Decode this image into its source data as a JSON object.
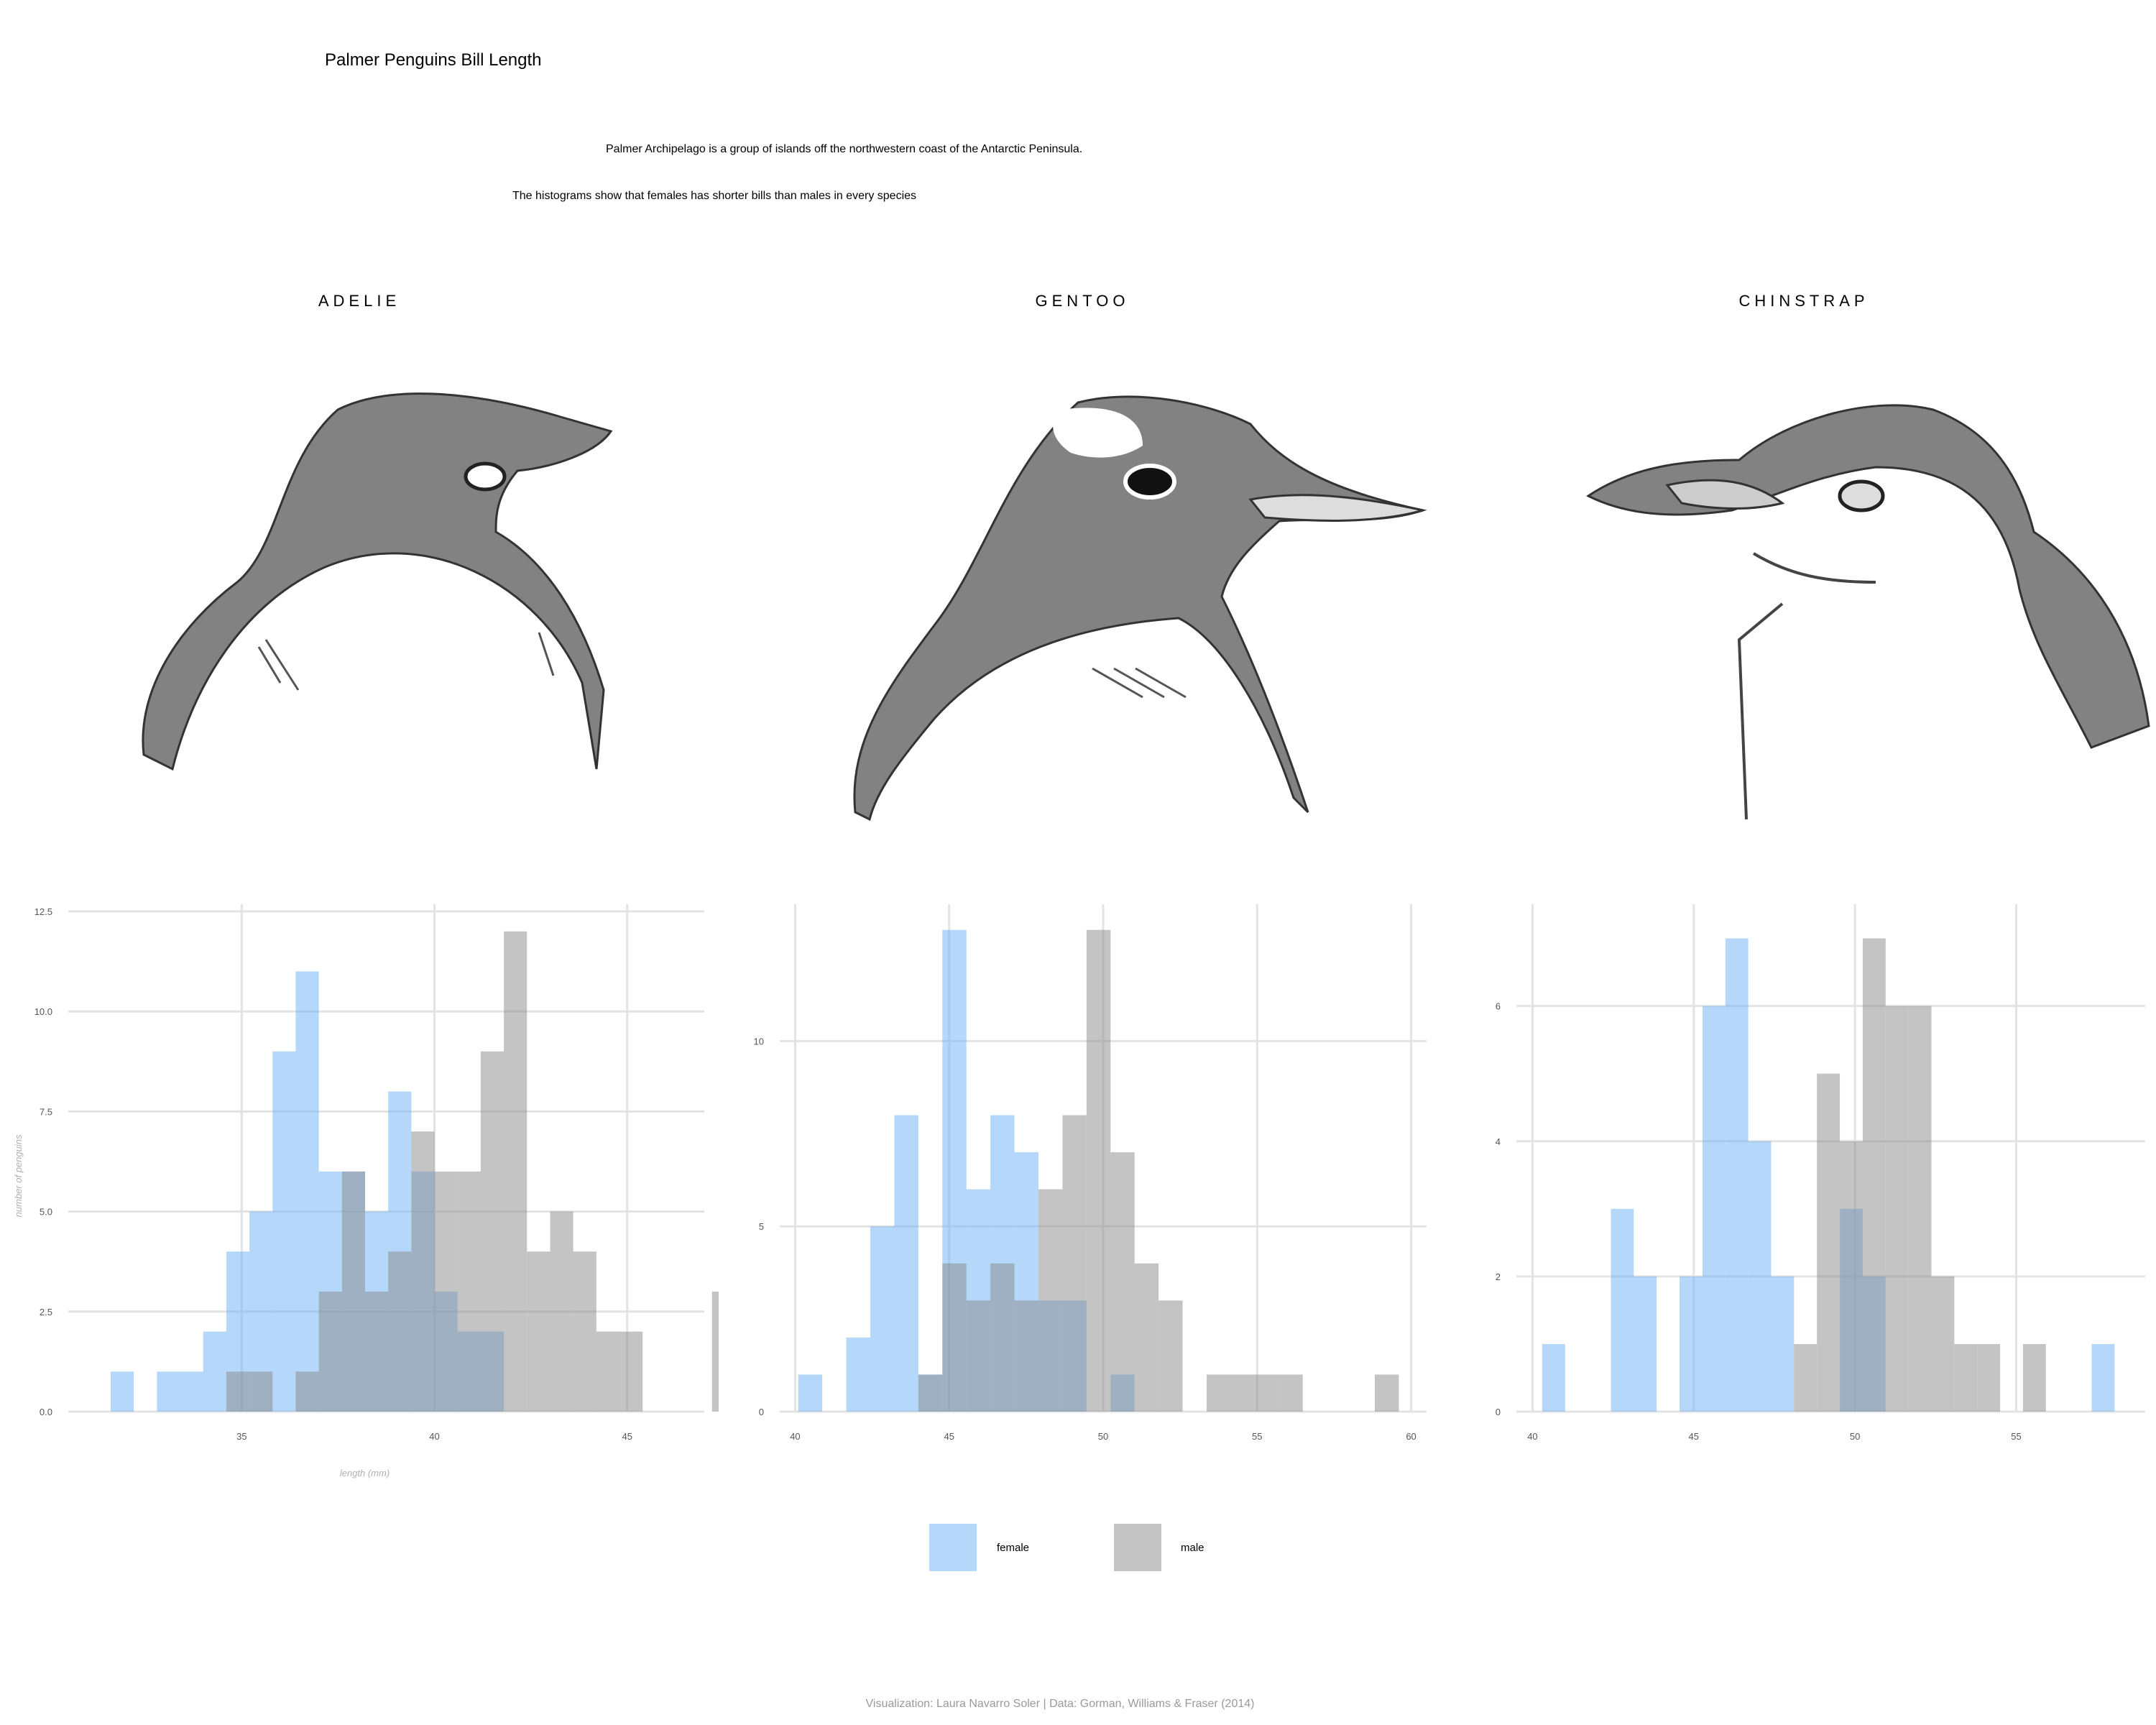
{
  "title": "Palmer Penguins Bill Length",
  "subtitle_1": "Palmer Archipelago is a group of islands off the northwestern coast of the Antarctic Peninsula.",
  "subtitle_2": "The histograms show that females has shorter bills than males in every species",
  "caption": "Visualization: Laura Navarro Soler | Data: Gorman, Williams & Fraser (2014)",
  "legend": {
    "female": "female",
    "male": "male"
  },
  "colors": {
    "female": "#6ab0f5",
    "male": "#8a8a8a",
    "grid": "#e3e3e3",
    "axis_text": "#555555"
  },
  "icons": [
    "adelie-head-sketch",
    "gentoo-head-sketch",
    "chinstrap-head-sketch"
  ],
  "chart_data": [
    {
      "type": "bar",
      "species": "ADELIE",
      "xlabel": "length (mm)",
      "ylabel": "number of penguins",
      "xlim": [
        30.5,
        47
      ],
      "ylim": [
        0,
        12.5
      ],
      "x_ticks": [
        35,
        40,
        45
      ],
      "y_ticks": [
        0,
        2.5,
        5,
        7.5,
        10,
        12.5
      ],
      "y_tick_labels": [
        "0.0",
        "2.5",
        "5.0",
        "7.5",
        "10.0",
        "12.5"
      ],
      "bin_width": 0.6,
      "bin_start": 31.6,
      "series": [
        {
          "name": "female",
          "values": [
            1,
            0,
            1,
            1,
            2,
            4,
            5,
            9,
            11,
            6,
            6,
            5,
            8,
            6,
            3,
            2,
            2,
            0,
            0,
            0,
            0,
            0,
            0,
            0,
            0,
            0,
            0
          ]
        },
        {
          "name": "male",
          "values": [
            0,
            0,
            0,
            0,
            0,
            1,
            1,
            0,
            1,
            3,
            6,
            3,
            4,
            7,
            6,
            6,
            9,
            12,
            4,
            5,
            4,
            2,
            2,
            0,
            0,
            0,
            3
          ]
        }
      ]
    },
    {
      "type": "bar",
      "species": "GENTOO",
      "xlim": [
        39.5,
        60.5
      ],
      "ylim": [
        0,
        13.5
      ],
      "x_ticks": [
        40,
        45,
        50,
        55,
        60
      ],
      "y_ticks": [
        0,
        5,
        10
      ],
      "y_tick_labels": [
        "0",
        "5",
        "10"
      ],
      "bin_width": 0.78,
      "bin_start": 40.1,
      "series": [
        {
          "name": "female",
          "values": [
            1,
            0,
            2,
            5,
            8,
            1,
            13,
            6,
            8,
            7,
            3,
            3,
            0,
            1,
            0,
            0,
            0,
            0,
            0,
            0,
            0,
            0,
            0,
            0,
            0
          ]
        },
        {
          "name": "male",
          "values": [
            0,
            0,
            0,
            0,
            0,
            1,
            4,
            3,
            4,
            3,
            6,
            8,
            13,
            7,
            4,
            3,
            0,
            1,
            1,
            1,
            1,
            0,
            0,
            0,
            1
          ]
        }
      ]
    },
    {
      "type": "bar",
      "species": "CHINSTRAP",
      "xlim": [
        39.5,
        59
      ],
      "ylim": [
        0,
        7.4
      ],
      "x_ticks": [
        40,
        45,
        50,
        55
      ],
      "y_ticks": [
        0,
        2,
        4,
        6
      ],
      "y_tick_labels": [
        "0",
        "2",
        "4",
        "6"
      ],
      "bin_width": 0.71,
      "bin_start": 40.3,
      "series": [
        {
          "name": "female",
          "values": [
            1,
            0,
            0,
            3,
            2,
            0,
            2,
            6,
            7,
            4,
            2,
            0,
            0,
            3,
            2,
            0,
            0,
            0,
            0,
            0,
            0,
            0,
            0,
            0,
            1
          ]
        },
        {
          "name": "male",
          "values": [
            0,
            0,
            0,
            0,
            0,
            0,
            0,
            0,
            0,
            0,
            0,
            1,
            5,
            4,
            7,
            6,
            6,
            2,
            1,
            1,
            0,
            1,
            0,
            0,
            0
          ]
        }
      ]
    }
  ]
}
